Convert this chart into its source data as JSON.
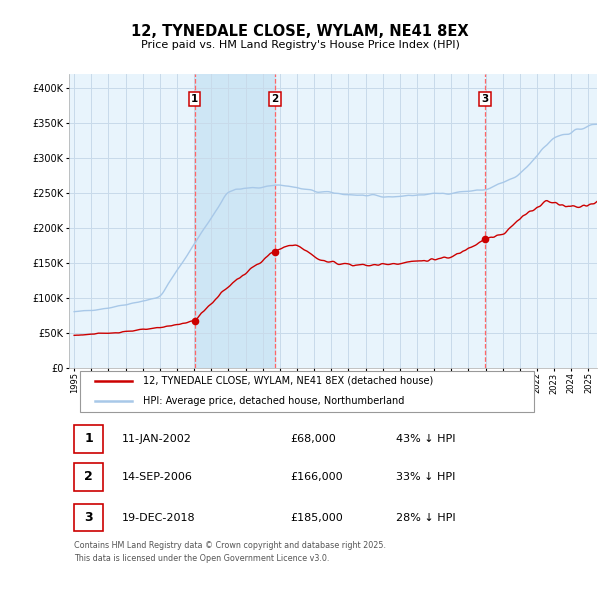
{
  "title": "12, TYNEDALE CLOSE, WYLAM, NE41 8EX",
  "subtitle": "Price paid vs. HM Land Registry's House Price Index (HPI)",
  "legend_line1": "12, TYNEDALE CLOSE, WYLAM, NE41 8EX (detached house)",
  "legend_line2": "HPI: Average price, detached house, Northumberland",
  "footnote": "Contains HM Land Registry data © Crown copyright and database right 2025.\nThis data is licensed under the Open Government Licence v3.0.",
  "sales": [
    {
      "num": 1,
      "date": "11-JAN-2002",
      "price": 68000,
      "hpi_pct": "43% ↓ HPI",
      "x": 2002.03
    },
    {
      "num": 2,
      "date": "14-SEP-2006",
      "price": 166000,
      "hpi_pct": "33% ↓ HPI",
      "x": 2006.71
    },
    {
      "num": 3,
      "date": "19-DEC-2018",
      "price": 185000,
      "hpi_pct": "28% ↓ HPI",
      "x": 2018.96
    }
  ],
  "hpi_color": "#a8c8e8",
  "property_color": "#cc0000",
  "sale_marker_color": "#cc0000",
  "vline_color": "#ff6666",
  "shade_color": "#ddeeff",
  "grid_color": "#c8daea",
  "background_color": "#e8f4fc",
  "ylim": [
    0,
    420000
  ],
  "xlim_start": 1994.7,
  "xlim_end": 2025.5
}
